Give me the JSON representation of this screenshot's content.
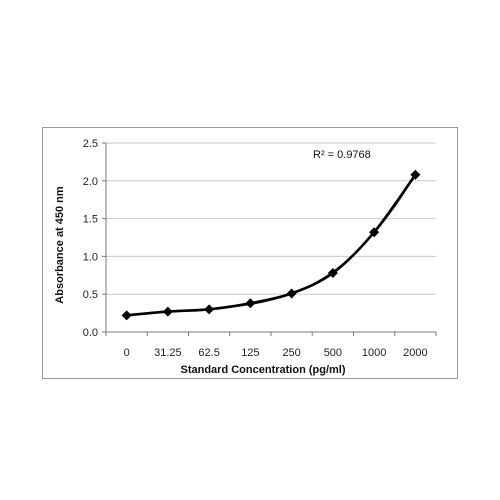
{
  "chart_data": {
    "type": "line",
    "categories": [
      "0",
      "31.25",
      "62.5",
      "125",
      "250",
      "500",
      "1000",
      "2000"
    ],
    "series": [
      {
        "values": [
          0.22,
          0.27,
          0.3,
          0.38,
          0.51,
          0.78,
          1.32,
          2.08
        ],
        "color": "#000000",
        "marker": "diamond"
      }
    ],
    "trendline": {
      "kind": "polynomial",
      "color": "#555555",
      "annotation": "R² = 0.9768"
    },
    "xlabel": "Standard Concentration (pg/ml)",
    "ylabel": "Absorbance at 450 nm",
    "ylim": [
      0,
      2.5
    ],
    "yticks": [
      "0.0",
      "0.5",
      "1.0",
      "1.5",
      "2.0",
      "2.5"
    ],
    "grid": "horizontal"
  }
}
